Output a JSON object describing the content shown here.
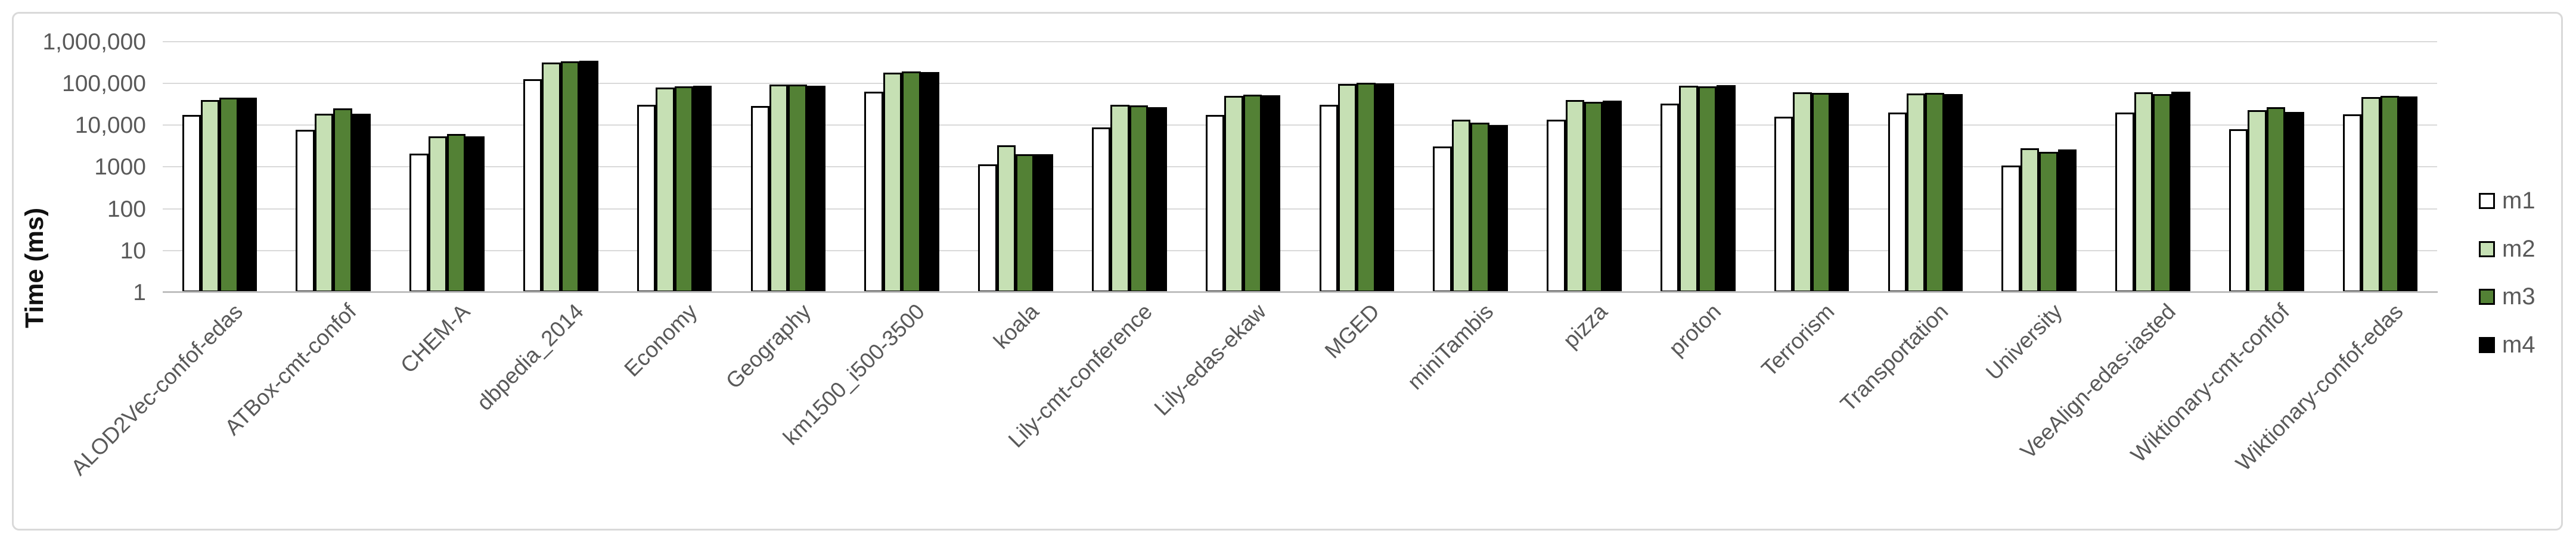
{
  "chart_data": {
    "type": "bar",
    "title": "",
    "xlabel": "",
    "ylabel": "Time (ms)",
    "y_scale": "log10",
    "ylim": [
      1,
      1000000
    ],
    "y_tick_labels": [
      "1",
      "10",
      "100",
      "1000",
      "10,000",
      "100,000",
      "1,000,000"
    ],
    "grid": "horizontal",
    "legend_position": "right",
    "categories": [
      "ALOD2Vec-confof-edas",
      "ATBox-cmt-confof",
      "CHEM-A",
      "dbpedia_2014",
      "Economy",
      "Geography",
      "km1500_i500-3500",
      "koala",
      "Lily-cmt-conference",
      "Lily-edas-ekaw",
      "MGED",
      "miniTambis",
      "pizza",
      "proton",
      "Terrorism",
      "Transportation",
      "University",
      "VeeAlign-edas-iasted",
      "Wiktionary-cmt-confof",
      "Wiktionary-confof-edas"
    ],
    "series": [
      {
        "name": "m1",
        "color": "#ffffff",
        "values": [
          17500,
          7700,
          2100,
          125000,
          31000,
          29000,
          63000,
          1150,
          8900,
          17600,
          31000,
          3100,
          13700,
          33000,
          16200,
          20000,
          1100,
          20400,
          8000,
          18000
        ]
      },
      {
        "name": "m2",
        "color": "#c6e0b4",
        "values": [
          40000,
          19000,
          5400,
          320000,
          81000,
          93000,
          183000,
          3300,
          31000,
          51000,
          98000,
          13500,
          40000,
          89000,
          61000,
          58000,
          2800,
          61000,
          23000,
          47000
        ]
      },
      {
        "name": "m3",
        "color": "#538135",
        "values": [
          45000,
          25500,
          6200,
          340000,
          85000,
          95000,
          195000,
          2000,
          30000,
          54000,
          103000,
          11700,
          36000,
          85000,
          59000,
          59000,
          2300,
          56000,
          27000,
          51000
        ]
      },
      {
        "name": "m4",
        "color": "#000000",
        "values": [
          46000,
          19000,
          5400,
          355000,
          87000,
          88000,
          188000,
          2050,
          27000,
          52000,
          100000,
          10000,
          39000,
          91000,
          60000,
          56000,
          2600,
          62500,
          21000,
          49000
        ]
      }
    ]
  }
}
